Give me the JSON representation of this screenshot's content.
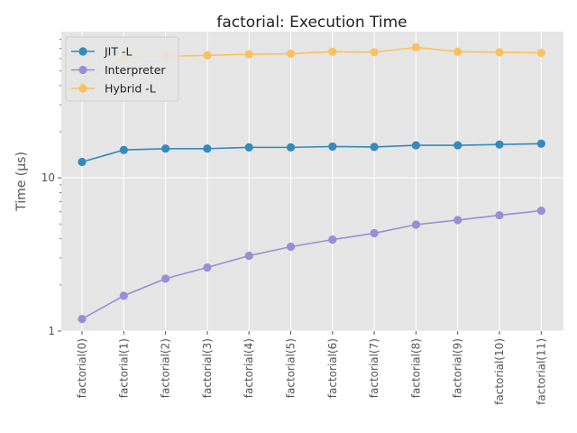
{
  "chart_data": {
    "type": "line",
    "title": "factorial: Execution Time",
    "xlabel": "",
    "ylabel": "Time (μs)",
    "yscale": "log",
    "ylim": [
      1,
      90
    ],
    "y_ticks": [
      1,
      10
    ],
    "y_tick_labels": [
      "1",
      "10"
    ],
    "grid": true,
    "legend_position": "upper-left",
    "categories": [
      "factorial(0)",
      "factorial(1)",
      "factorial(2)",
      "factorial(3)",
      "factorial(4)",
      "factorial(5)",
      "factorial(6)",
      "factorial(7)",
      "factorial(8)",
      "factorial(9)",
      "factorial(10)",
      "factorial(11)"
    ],
    "series": [
      {
        "name": "JIT -L",
        "color": "#348ABD",
        "values": [
          12.7,
          15.2,
          15.5,
          15.5,
          15.8,
          15.8,
          16.0,
          15.9,
          16.3,
          16.3,
          16.5,
          16.7
        ]
      },
      {
        "name": "Interpreter",
        "color": "#988ED5",
        "values": [
          1.2,
          1.7,
          2.2,
          2.6,
          3.1,
          3.55,
          3.95,
          4.35,
          4.95,
          5.3,
          5.7,
          6.1
        ]
      },
      {
        "name": "Hybrid -L",
        "color": "#FBC15E",
        "values": [
          42,
          61,
          62,
          63,
          64,
          64.5,
          66.5,
          66,
          71,
          66.5,
          66,
          65.5
        ]
      }
    ]
  }
}
